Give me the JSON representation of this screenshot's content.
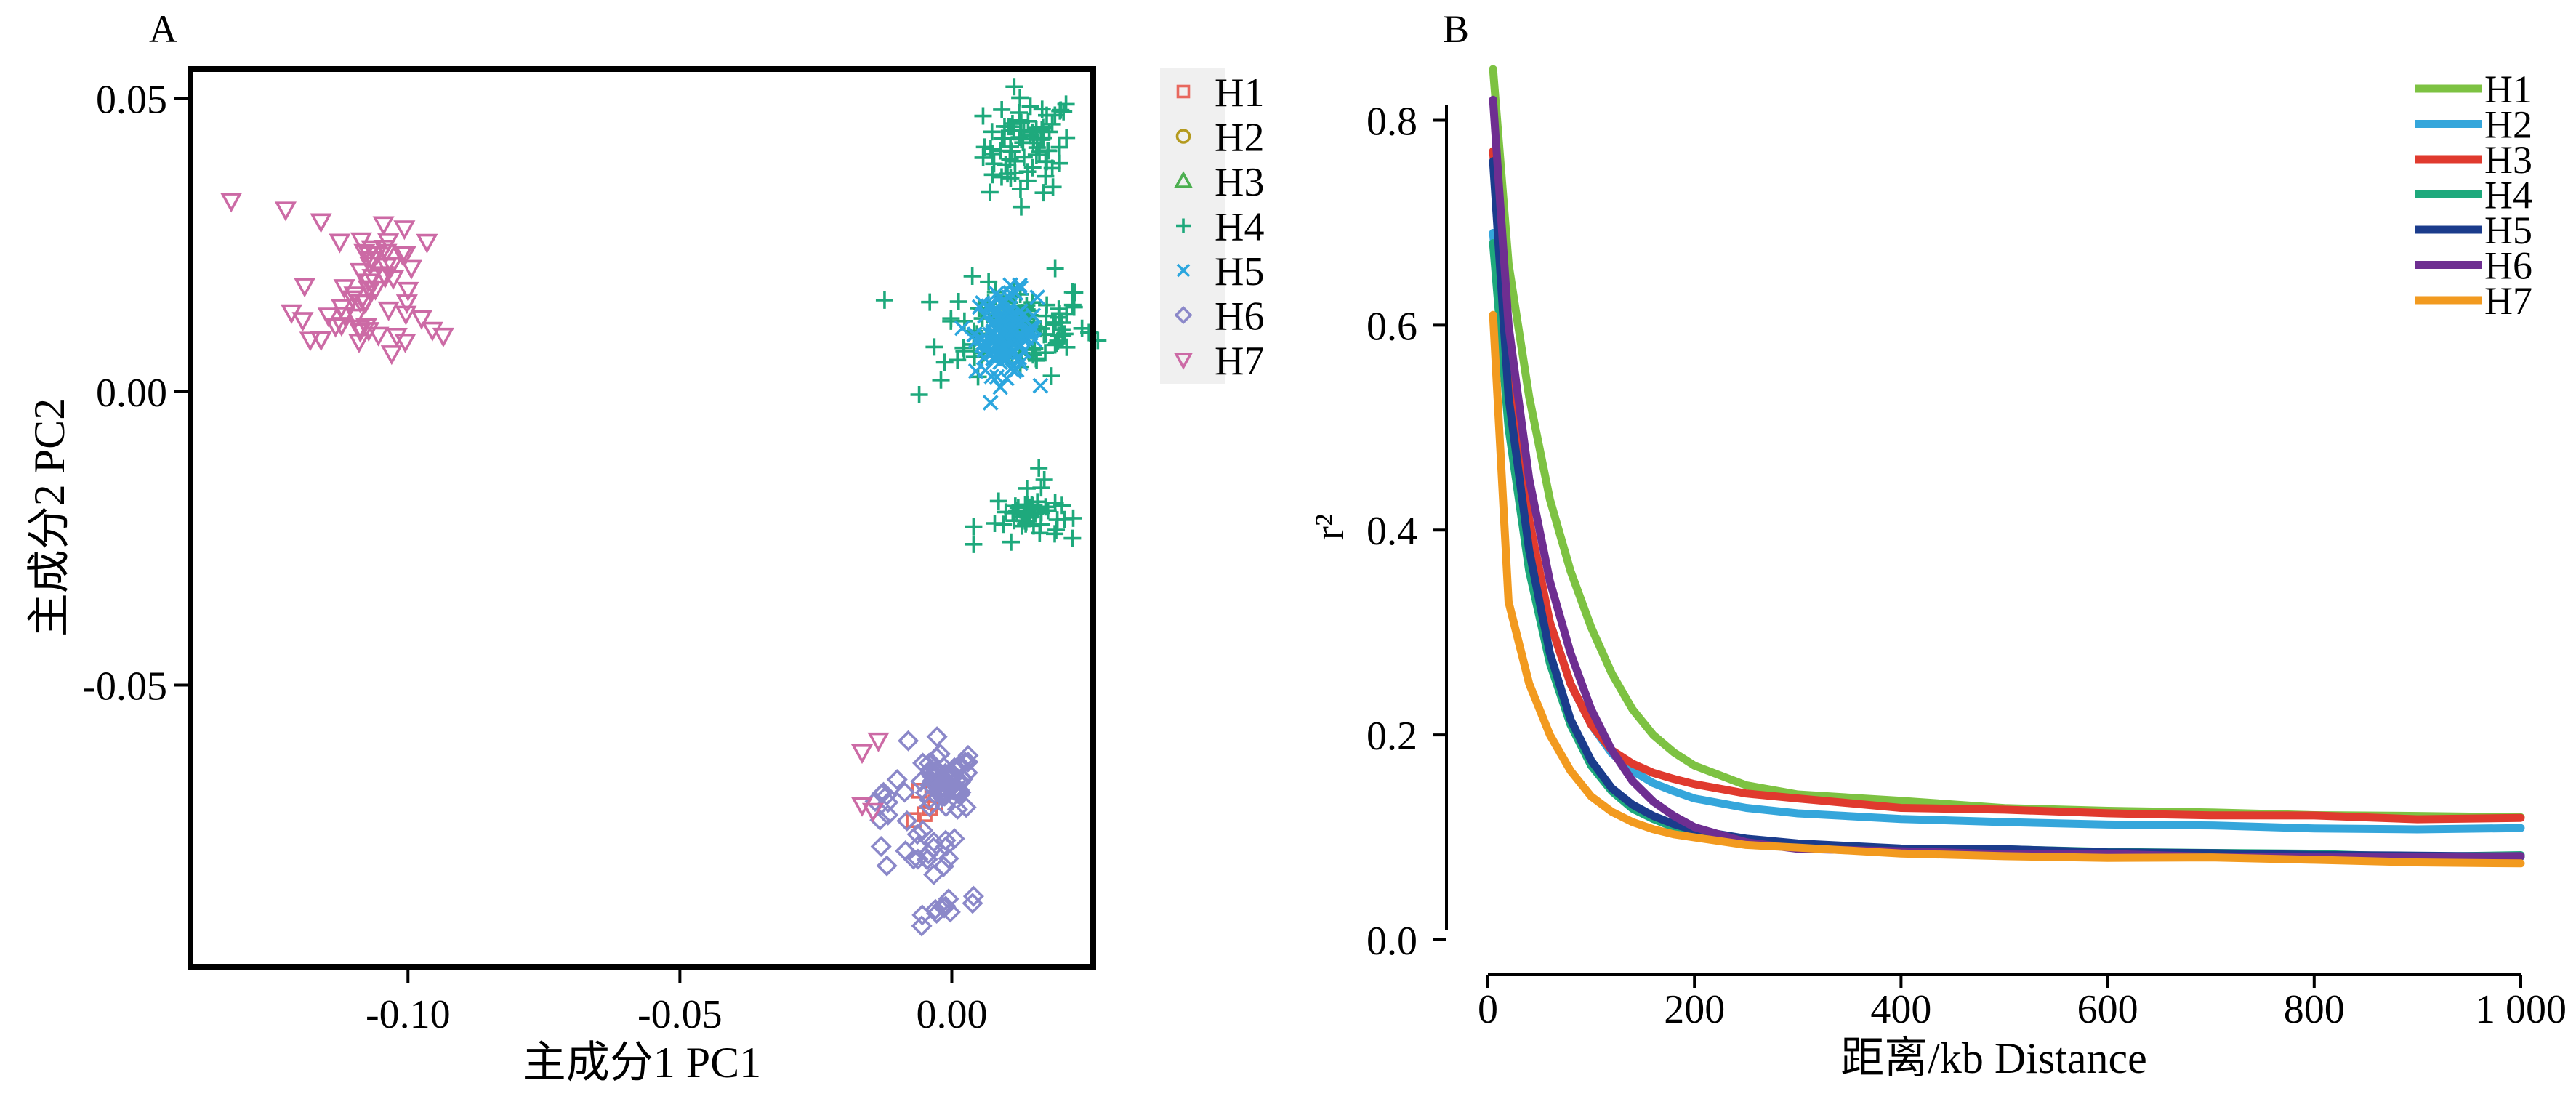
{
  "chart_data": [
    {
      "panel_label": "A",
      "type": "scatter",
      "xlabel": "主成分1 PC1",
      "ylabel": "主成分2 PC2",
      "xlim": [
        -0.14,
        0.026
      ],
      "ylim": [
        -0.098,
        0.055
      ],
      "xticks": [
        -0.1,
        -0.05,
        0.0
      ],
      "xtick_labels": [
        "-0.10",
        "-0.05",
        "0.00"
      ],
      "yticks": [
        0.05,
        0.0,
        -0.05
      ],
      "ytick_labels": [
        "0.05",
        "0.00",
        "-0.05"
      ],
      "legend_position": "right",
      "grid": false,
      "series": [
        {
          "name": "H1",
          "marker": "square",
          "color": "#E8685E",
          "points": [
            [
              -0.006,
              -0.068
            ],
            [
              -0.004,
              -0.071
            ],
            [
              -0.007,
              -0.073
            ],
            [
              -0.003,
              -0.07
            ],
            [
              -0.005,
              -0.072
            ]
          ]
        },
        {
          "name": "H2",
          "marker": "circle",
          "color": "#B49A1E",
          "points": []
        },
        {
          "name": "H3",
          "marker": "triangle-up",
          "color": "#4CAF50",
          "points": []
        },
        {
          "name": "H4",
          "marker": "plus",
          "color": "#1EA97C",
          "clusters": [
            {
              "cx": 0.014,
              "cy": 0.042,
              "sx": 0.004,
              "sy": 0.004,
              "n": 75
            },
            {
              "cx": 0.012,
              "cy": 0.011,
              "sx": 0.007,
              "sy": 0.004,
              "n": 110
            },
            {
              "cx": 0.014,
              "cy": -0.021,
              "sx": 0.003,
              "sy": 0.002,
              "n": 45
            }
          ],
          "points": [
            [
              0.021,
              0.049
            ],
            [
              0.007,
              0.034
            ],
            [
              0.0075,
              0.037
            ],
            [
              -0.006,
              -0.0005
            ],
            [
              -0.002,
              0.002
            ],
            [
              0.019,
              0.021
            ],
            [
              0.016,
              -0.013
            ],
            [
              0.004,
              -0.026
            ],
            [
              0.004,
              -0.023
            ],
            [
              0.017,
              -0.015
            ]
          ]
        },
        {
          "name": "H5",
          "marker": "x",
          "color": "#2BA6DE",
          "clusters": [
            {
              "cx": 0.01,
              "cy": 0.01,
              "sx": 0.0028,
              "sy": 0.0035,
              "n": 130
            }
          ],
          "points": []
        },
        {
          "name": "H6",
          "marker": "diamond",
          "color": "#8B88C9",
          "clusters": [
            {
              "cx": -0.0015,
              "cy": -0.067,
              "sx": 0.0028,
              "sy": 0.0025,
              "n": 55
            },
            {
              "cx": -0.004,
              "cy": -0.079,
              "sx": 0.003,
              "sy": 0.002,
              "n": 18
            },
            {
              "cx": -0.011,
              "cy": -0.071,
              "sx": 0.003,
              "sy": 0.002,
              "n": 10
            },
            {
              "cx": -0.001,
              "cy": -0.088,
              "sx": 0.002,
              "sy": 0.0012,
              "n": 10
            }
          ],
          "points": [
            [
              -0.008,
              -0.0595
            ],
            [
              0.003,
              -0.062
            ],
            [
              0.002,
              -0.066
            ],
            [
              -0.013,
              -0.0775
            ],
            [
              0.004,
              -0.086
            ]
          ]
        },
        {
          "name": "H7",
          "marker": "triangle-down",
          "color": "#CC6AA5",
          "clusters": [
            {
              "cx": -0.104,
              "cy": 0.023,
              "sx": 0.003,
              "sy": 0.0025,
              "n": 22
            },
            {
              "cx": -0.108,
              "cy": 0.014,
              "sx": 0.006,
              "sy": 0.0025,
              "n": 30
            }
          ],
          "points": [
            [
              -0.1325,
              0.0325
            ],
            [
              -0.1225,
              0.031
            ],
            [
              -0.116,
              0.029
            ],
            [
              -0.1045,
              0.0285
            ],
            [
              -0.0965,
              0.0255
            ],
            [
              -0.0955,
              0.0105
            ],
            [
              -0.1005,
              0.0085
            ],
            [
              -0.0935,
              0.0095
            ],
            [
              -0.0975,
              0.0125
            ],
            [
              -0.119,
              0.018
            ],
            [
              -0.103,
              0.0065
            ],
            [
              -0.109,
              0.0085
            ],
            [
              -0.0165,
              -0.0615
            ],
            [
              -0.0135,
              -0.0595
            ],
            [
              -0.0145,
              -0.0715
            ],
            [
              -0.0165,
              -0.0705
            ]
          ]
        }
      ]
    },
    {
      "panel_label": "B",
      "type": "line",
      "xlabel": "距离/kb Distance",
      "ylabel": "r²",
      "xlim": [
        0,
        1000
      ],
      "ylim": [
        0,
        0.85
      ],
      "xticks": [
        0,
        200,
        400,
        600,
        800,
        1000
      ],
      "xtick_labels": [
        "0",
        "200",
        "400",
        "600",
        "800",
        "1 000"
      ],
      "yticks": [
        0.0,
        0.2,
        0.4,
        0.6,
        0.8
      ],
      "ytick_labels": [
        "0.0",
        "0.2",
        "0.4",
        "0.6",
        "0.8"
      ],
      "legend_position": "top-right",
      "grid": false,
      "series": [
        {
          "name": "H1",
          "color": "#7DC242",
          "x": [
            5,
            20,
            40,
            60,
            80,
            100,
            120,
            140,
            160,
            180,
            200,
            250,
            300,
            400,
            500,
            600,
            700,
            800,
            900,
            1000
          ],
          "y": [
            0.85,
            0.66,
            0.53,
            0.43,
            0.36,
            0.305,
            0.26,
            0.225,
            0.2,
            0.183,
            0.17,
            0.15,
            0.142,
            0.135,
            0.13,
            0.127,
            0.124,
            0.122,
            0.121,
            0.12
          ]
        },
        {
          "name": "H2",
          "color": "#35A6DB",
          "x": [
            5,
            20,
            40,
            60,
            80,
            100,
            120,
            140,
            160,
            180,
            200,
            250,
            300,
            400,
            500,
            600,
            700,
            800,
            900,
            1000
          ],
          "y": [
            0.69,
            0.53,
            0.4,
            0.31,
            0.25,
            0.21,
            0.182,
            0.165,
            0.153,
            0.145,
            0.138,
            0.128,
            0.122,
            0.117,
            0.115,
            0.113,
            0.111,
            0.11,
            0.109,
            0.108
          ]
        },
        {
          "name": "H3",
          "color": "#E03A2E",
          "x": [
            5,
            20,
            40,
            60,
            80,
            100,
            120,
            140,
            160,
            180,
            200,
            250,
            300,
            400,
            500,
            600,
            700,
            800,
            900,
            1000
          ],
          "y": [
            0.77,
            0.56,
            0.41,
            0.31,
            0.25,
            0.21,
            0.185,
            0.172,
            0.163,
            0.157,
            0.152,
            0.143,
            0.137,
            0.13,
            0.126,
            0.124,
            0.122,
            0.12,
            0.119,
            0.118
          ]
        },
        {
          "name": "H4",
          "color": "#1EA97C",
          "x": [
            5,
            20,
            40,
            60,
            80,
            100,
            120,
            140,
            160,
            180,
            200,
            250,
            300,
            400,
            500,
            600,
            700,
            800,
            900,
            1000
          ],
          "y": [
            0.68,
            0.5,
            0.36,
            0.27,
            0.21,
            0.17,
            0.145,
            0.128,
            0.118,
            0.11,
            0.105,
            0.097,
            0.093,
            0.089,
            0.087,
            0.085,
            0.084,
            0.083,
            0.082,
            0.082
          ]
        },
        {
          "name": "H5",
          "color": "#1B3C8C",
          "x": [
            5,
            20,
            40,
            60,
            80,
            100,
            120,
            140,
            160,
            180,
            200,
            250,
            300,
            400,
            500,
            600,
            700,
            800,
            900,
            1000
          ],
          "y": [
            0.76,
            0.53,
            0.38,
            0.28,
            0.215,
            0.175,
            0.148,
            0.132,
            0.121,
            0.113,
            0.107,
            0.098,
            0.093,
            0.089,
            0.087,
            0.085,
            0.084,
            0.083,
            0.082,
            0.082
          ]
        },
        {
          "name": "H6",
          "color": "#6E2E91",
          "x": [
            5,
            20,
            40,
            60,
            80,
            100,
            120,
            140,
            160,
            180,
            200,
            250,
            300,
            400,
            500,
            600,
            700,
            800,
            900,
            1000
          ],
          "y": [
            0.82,
            0.6,
            0.45,
            0.35,
            0.28,
            0.225,
            0.185,
            0.155,
            0.135,
            0.121,
            0.11,
            0.096,
            0.09,
            0.086,
            0.084,
            0.083,
            0.082,
            0.082,
            0.081,
            0.081
          ]
        },
        {
          "name": "H7",
          "color": "#F29A1F",
          "x": [
            5,
            20,
            40,
            60,
            80,
            100,
            120,
            140,
            160,
            180,
            200,
            250,
            300,
            400,
            500,
            600,
            700,
            800,
            900,
            1000
          ],
          "y": [
            0.61,
            0.33,
            0.25,
            0.2,
            0.165,
            0.14,
            0.125,
            0.115,
            0.108,
            0.103,
            0.1,
            0.094,
            0.09,
            0.085,
            0.082,
            0.08,
            0.079,
            0.078,
            0.077,
            0.076
          ]
        }
      ]
    }
  ]
}
